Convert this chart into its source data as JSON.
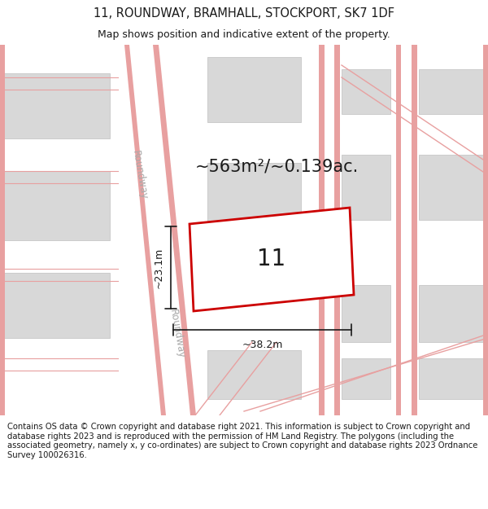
{
  "title_line1": "11, ROUNDWAY, BRAMHALL, STOCKPORT, SK7 1DF",
  "title_line2": "Map shows position and indicative extent of the property.",
  "footer_text": "Contains OS data © Crown copyright and database right 2021. This information is subject to Crown copyright and database rights 2023 and is reproduced with the permission of HM Land Registry. The polygons (including the associated geometry, namely x, y co-ordinates) are subject to Crown copyright and database rights 2023 Ordnance Survey 100026316.",
  "area_label": "~563m²/~0.139ac.",
  "property_number": "11",
  "width_label": "~38.2m",
  "height_label": "~23.1m",
  "road_label": "Roundway",
  "map_bg": "#efefef",
  "road_color": "#ffffff",
  "building_color": "#d8d8d8",
  "building_outline": "#cccccc",
  "road_line_color": "#e8a0a0",
  "property_fill": "#ffffff",
  "property_outline": "#cc0000",
  "dim_line_color": "#1a1a1a",
  "text_color": "#1a1a1a",
  "road_text_color": "#aaaaaa",
  "title_fontsize": 10.5,
  "subtitle_fontsize": 9,
  "footer_fontsize": 7.2,
  "area_fontsize": 15,
  "number_fontsize": 20,
  "dim_fontsize": 9,
  "road_fontsize": 8.5
}
